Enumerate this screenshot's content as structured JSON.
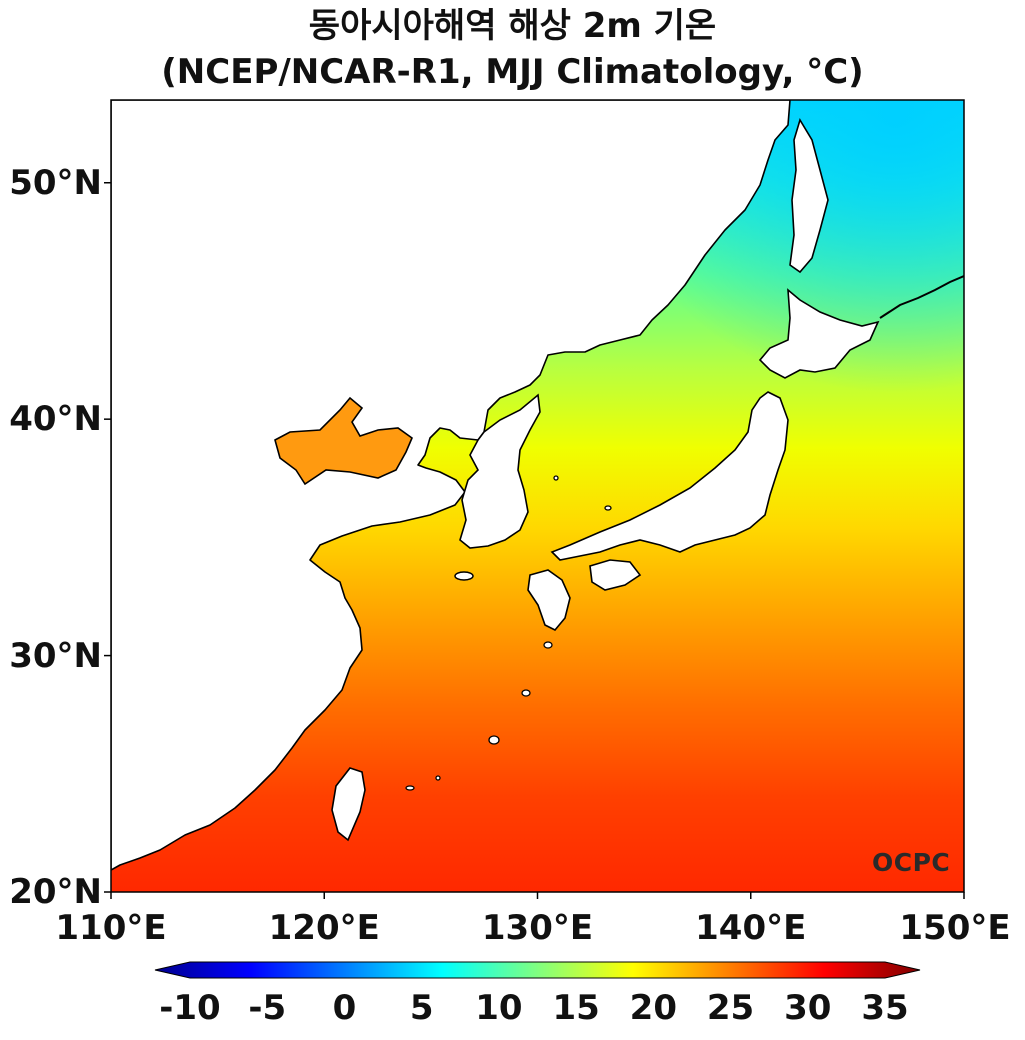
{
  "title": {
    "line1": "동아시아해역 해상 2m 기온",
    "line2": "(NCEP/NCAR-R1, MJJ Climatology, °C)"
  },
  "map": {
    "projection": "plate-carree",
    "lon_range": [
      110,
      150
    ],
    "lat_range": [
      20,
      53.5
    ],
    "variable": "sea-surface 2m air temperature",
    "units": "°C"
  },
  "axes": {
    "x_ticks": [
      {
        "value": 110,
        "label": "110°E"
      },
      {
        "value": 120,
        "label": "120°E"
      },
      {
        "value": 130,
        "label": "130°E"
      },
      {
        "value": 140,
        "label": "140°E"
      },
      {
        "value": 150,
        "label": "150°E"
      }
    ],
    "y_ticks": [
      {
        "value": 50,
        "label": "50°N"
      },
      {
        "value": 40,
        "label": "40°N"
      },
      {
        "value": 30,
        "label": "30°N"
      },
      {
        "value": 20,
        "label": "20°N"
      }
    ]
  },
  "colorbar": {
    "min": -10,
    "max": 35,
    "extend": "both",
    "colormap": "jet",
    "ticks": [
      {
        "value": -10,
        "label": "-10"
      },
      {
        "value": -5,
        "label": "-5"
      },
      {
        "value": 0,
        "label": "0"
      },
      {
        "value": 5,
        "label": "5"
      },
      {
        "value": 10,
        "label": "10"
      },
      {
        "value": 15,
        "label": "15"
      },
      {
        "value": 20,
        "label": "20"
      },
      {
        "value": 25,
        "label": "25"
      },
      {
        "value": 30,
        "label": "30"
      },
      {
        "value": 35,
        "label": "35"
      }
    ]
  },
  "colors": {
    "land": "#ffffff",
    "coastline": "#000000",
    "warm_south": "#ff2a00",
    "mid": "#ffa500",
    "yellow": "#f0ff00",
    "cool_north": "#00e0ff"
  },
  "watermark": "OCPC"
}
